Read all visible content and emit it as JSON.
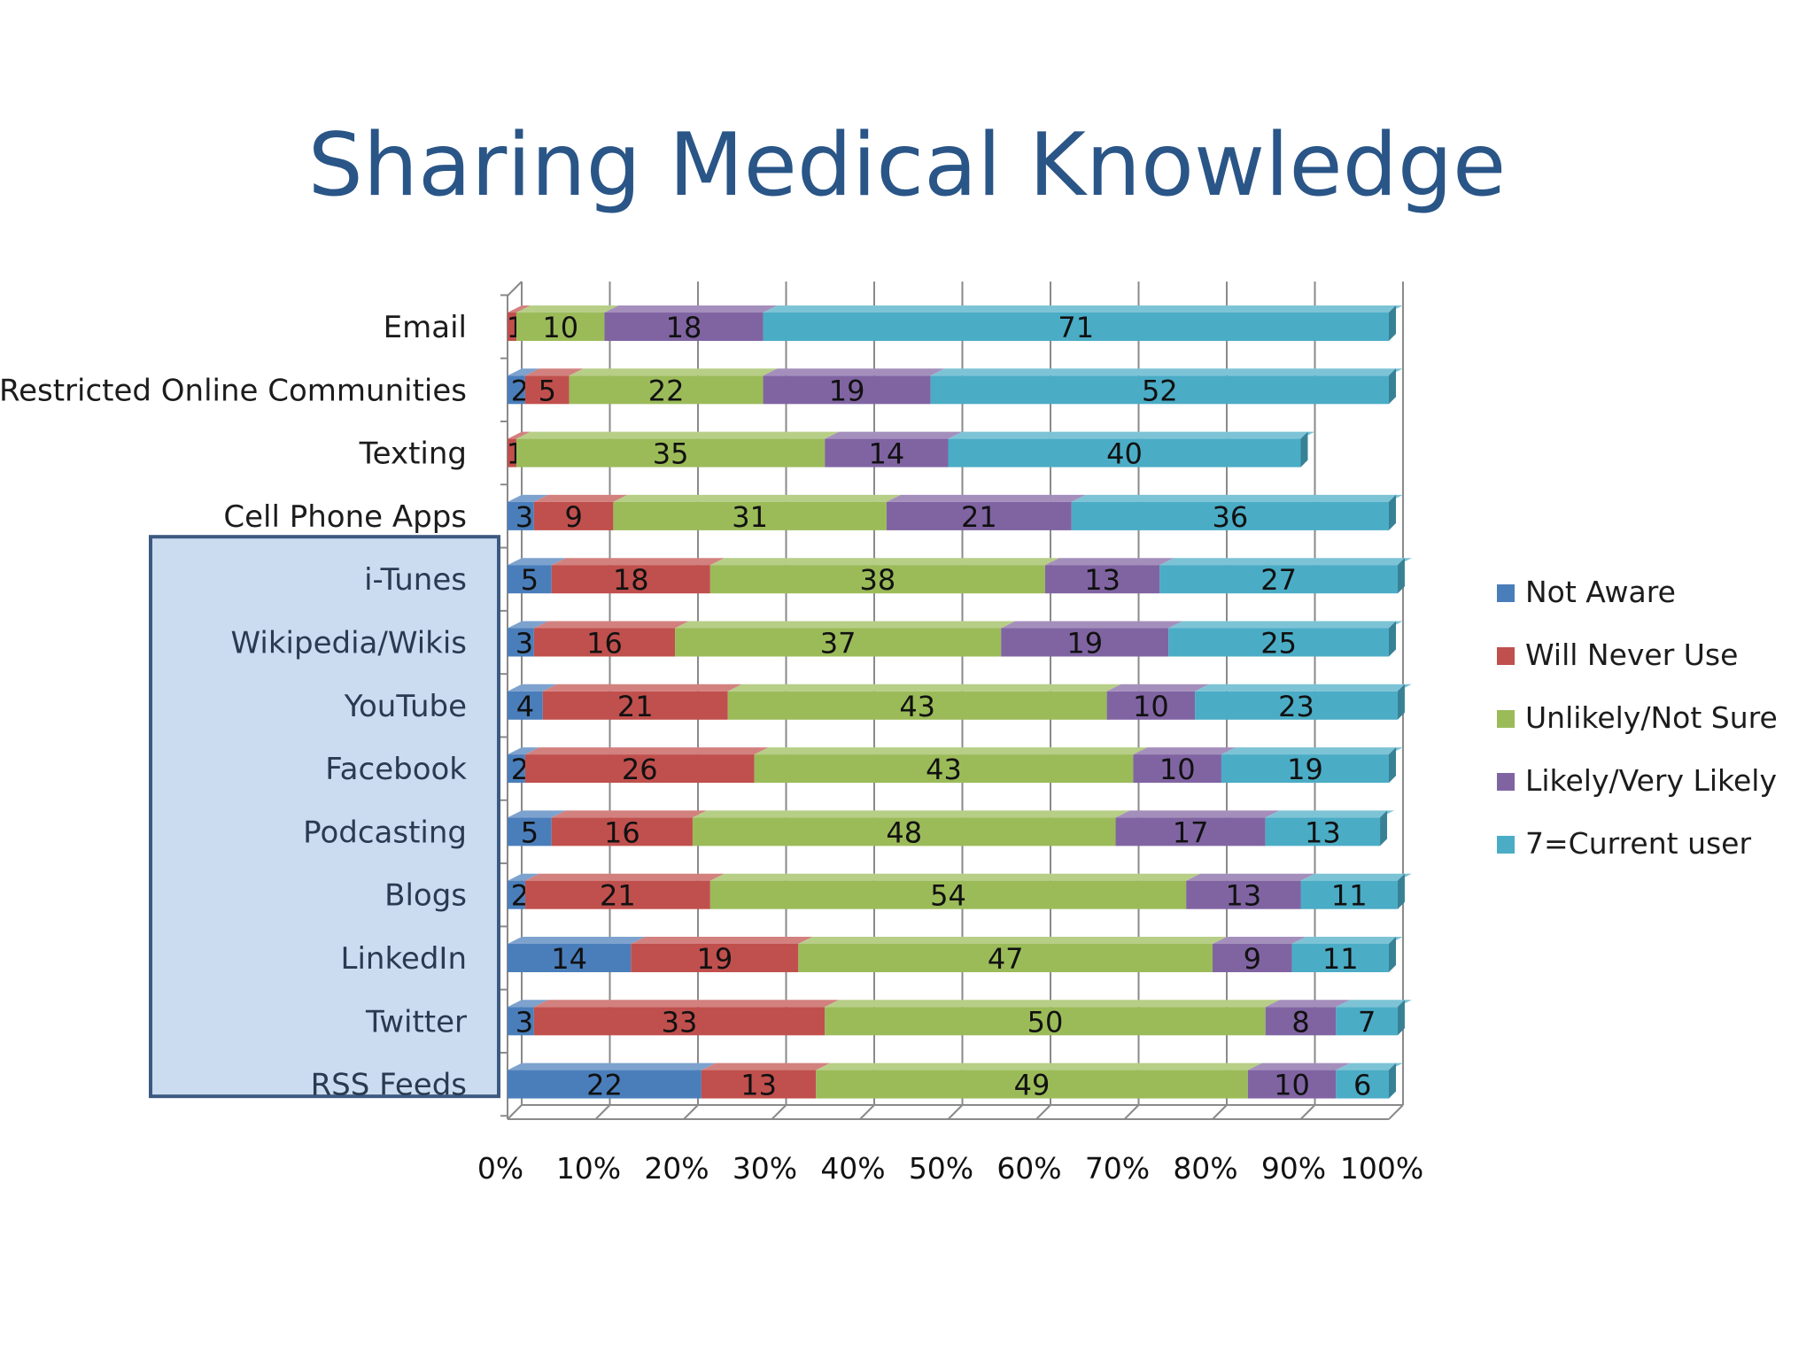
{
  "slide": {
    "title": "Sharing Medical Knowledge"
  },
  "colors": {
    "title": "#2a5587",
    "highlight_fill": "#ccdcf0",
    "highlight_border": "#3c5a80",
    "grid": "#8a8a8a"
  },
  "chart_data": {
    "type": "bar",
    "orientation": "horizontal",
    "stacked": "percent",
    "title": "Sharing Medical Knowledge",
    "xlabel": "",
    "ylabel": "",
    "xlim": [
      0,
      100
    ],
    "x_ticks": [
      "0%",
      "10%",
      "20%",
      "30%",
      "40%",
      "50%",
      "60%",
      "70%",
      "80%",
      "90%",
      "100%"
    ],
    "grid": true,
    "legend_position": "right",
    "categories": [
      "Email",
      "Restricted Online Communities",
      "Texting",
      "Cell Phone Apps",
      "i-Tunes",
      "Wikipedia/Wikis",
      "YouTube",
      "Facebook",
      "Podcasting",
      "Blogs",
      "LinkedIn",
      "Twitter",
      "RSS Feeds"
    ],
    "highlighted_categories": [
      "i-Tunes",
      "Wikipedia/Wikis",
      "YouTube",
      "Facebook",
      "Podcasting",
      "Blogs",
      "LinkedIn",
      "Twitter",
      "RSS Feeds"
    ],
    "series": [
      {
        "name": "Not Aware",
        "color": "#4a7ebb",
        "values": [
          0,
          2,
          0,
          3,
          5,
          3,
          4,
          2,
          5,
          2,
          14,
          3,
          22
        ],
        "labels": [
          "",
          "2",
          "",
          "3",
          "5",
          "3",
          "4",
          "2",
          "5",
          "2",
          "14",
          "3",
          "22"
        ]
      },
      {
        "name": "Will Never Use",
        "color": "#c0504d",
        "values": [
          1,
          5,
          1,
          9,
          18,
          16,
          21,
          26,
          16,
          21,
          19,
          33,
          13
        ],
        "labels": [
          "1",
          "5",
          "1",
          "9",
          "18",
          "16",
          "21",
          "26",
          "16",
          "21",
          "19",
          "33",
          "13"
        ]
      },
      {
        "name": "Unlikely/Not Sure",
        "color": "#9bbb59",
        "values": [
          10,
          22,
          35,
          31,
          38,
          37,
          43,
          43,
          48,
          54,
          47,
          50,
          49
        ],
        "labels": [
          "10",
          "22",
          "35",
          "31",
          "38",
          "37",
          "43",
          "43",
          "48",
          "54",
          "47",
          "50",
          "49"
        ]
      },
      {
        "name": "Likely/Very Likely",
        "color": "#8064a2",
        "values": [
          18,
          19,
          14,
          21,
          13,
          19,
          10,
          10,
          17,
          13,
          9,
          8,
          10
        ],
        "labels": [
          "18",
          "19",
          "14",
          "21",
          "13",
          "19",
          "10",
          "10",
          "17",
          "13",
          "9",
          "8",
          "10"
        ]
      },
      {
        "name": "7=Current user",
        "color": "#4bacc6",
        "values": [
          71,
          52,
          40,
          36,
          27,
          25,
          23,
          19,
          13,
          11,
          11,
          7,
          6
        ],
        "labels": [
          "71",
          "52",
          "40",
          "36",
          "27",
          "25",
          "23",
          "19",
          "13",
          "11",
          "11",
          "7",
          "6"
        ]
      }
    ]
  }
}
